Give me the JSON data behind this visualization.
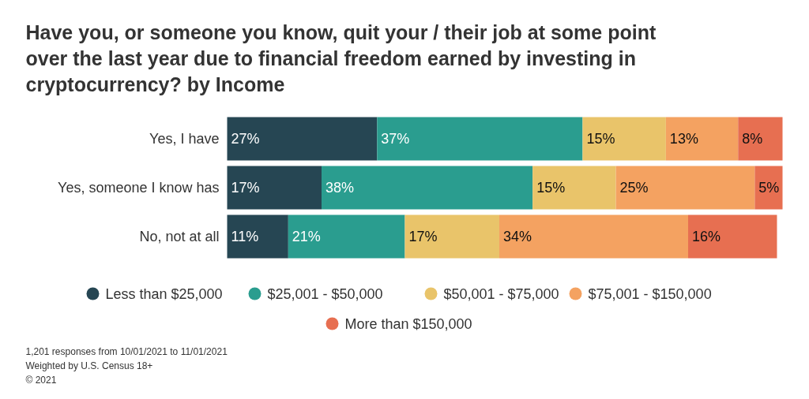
{
  "chart_data": {
    "type": "bar",
    "orientation": "horizontal",
    "stacked": true,
    "legend": "bottom",
    "grid": false,
    "title": "Have you, or someone you know, quit your / their job at some point over the last year due to financial freedom earned by investing in cryptocurrency? by Income",
    "categories": [
      "Yes, I have",
      "Yes, someone I know has",
      "No, not at all"
    ],
    "series": [
      {
        "name": "Less than $25,000",
        "color": "#264653",
        "values": [
          27,
          17,
          11
        ],
        "value_labels": [
          "27%",
          "17%",
          "11%"
        ]
      },
      {
        "name": "$25,001 - $50,000",
        "color": "#2a9d8f",
        "values": [
          37,
          38,
          21
        ],
        "value_labels": [
          "37%",
          "38%",
          "21%"
        ]
      },
      {
        "name": "$50,001 - $75,000",
        "color": "#e9c46a",
        "values": [
          15,
          15,
          17
        ],
        "value_labels": [
          "15%",
          "15%",
          "17%"
        ]
      },
      {
        "name": "$75,001 - $150,000",
        "color": "#f4a261",
        "values": [
          13,
          25,
          34
        ],
        "value_labels": [
          "13%",
          "25%",
          "34%"
        ]
      },
      {
        "name": "More than $150,000",
        "color": "#e76f51",
        "values": [
          8,
          5,
          16
        ],
        "value_labels": [
          "8%",
          "5%",
          "16%"
        ]
      }
    ],
    "annotations": [
      "1,201 responses from 10/01/2021 to 11/01/2021",
      "Weighted by U.S. Census 18+",
      "© 2021"
    ]
  }
}
